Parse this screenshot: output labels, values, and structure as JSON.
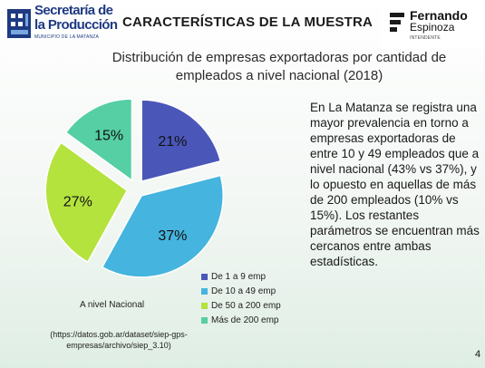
{
  "header": {
    "logo_left_line1": "Secretaría de",
    "logo_left_line2": "la Producción",
    "logo_left_sub": "MUNICIPIO DE LA MATANZA",
    "title": "CARACTERÍSTICAS DE LA MUESTRA",
    "logo_right_name": "Fernando",
    "logo_right_surname": "Espinoza",
    "logo_right_sub": "INTENDENTE"
  },
  "chart_data": {
    "type": "pie",
    "title": "Distribución de empresas exportadoras por cantidad de empleados a nivel nacional (2018)",
    "categories": [
      "De 1 a 9 emp",
      "De 10 a 49 emp",
      "De 50 a 200 emp",
      "Más de 200 emp"
    ],
    "values": [
      21,
      37,
      27,
      15
    ],
    "value_labels": [
      "21%",
      "37%",
      "27%",
      "15%"
    ],
    "colors": [
      "#4a57b8",
      "#45b4de",
      "#b4e33e",
      "#55cfa3"
    ],
    "exploded": true,
    "legend_position": "bottom-right"
  },
  "chart_labels": {
    "scope": "A nivel Nacional",
    "source": "(https://datos.gob.ar/dataset/siep-gps-empresas/archivo/siep_3.10)"
  },
  "description": "En La Matanza se registra una mayor prevalencia en torno a empresas exportadoras de entre 10 y 49 empleados que a nivel nacional (43% vs 37%), y lo opuesto en aquellas de más de 200 empleados (10% vs 15%). Los restantes parámetros se encuentran más cercanos entre ambas estadísticas.",
  "page_number": "4"
}
